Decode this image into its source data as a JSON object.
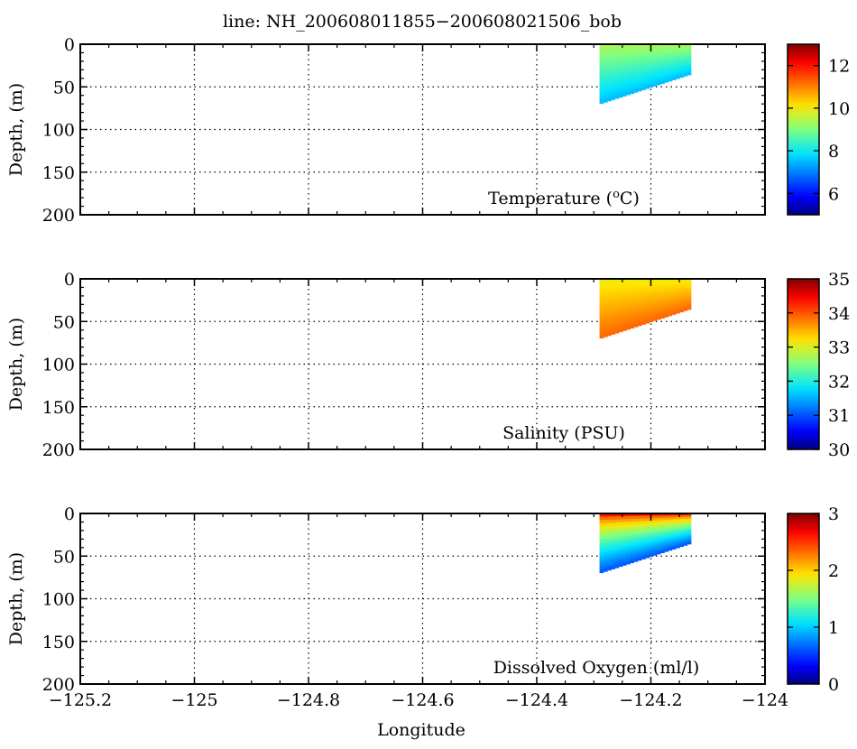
{
  "title": "line: NH_200608011855−200608021506_bob",
  "xlabel": "Longitude",
  "chart_data": [
    {
      "type": "heatmap",
      "label": "Temperature (°C)",
      "label_prefix": "Temperature (",
      "label_unit_sup": "o",
      "label_unit_rest": "C)",
      "ylabel": "Depth, (m)",
      "xlim": [
        -125.2,
        -124
      ],
      "ylim": [
        0,
        200
      ],
      "x_ticks": [
        "−125.2",
        "−125",
        "−124.8",
        "−124.6",
        "−124.4",
        "−124.2",
        "−124"
      ],
      "y_ticks": [
        "0",
        "50",
        "100",
        "150",
        "200"
      ],
      "colorbar": {
        "range": [
          5,
          13
        ],
        "ticks": [
          "6",
          "8",
          "10",
          "12"
        ]
      },
      "section": {
        "lon_range": [
          -124.29,
          -124.13
        ],
        "top_depth": 0,
        "bottom_depth_west": 70,
        "bottom_depth_east": 35,
        "surface_value": 9.4,
        "bottom_value": 7.5
      },
      "grid": true
    },
    {
      "type": "heatmap",
      "label": "Salinity (PSU)",
      "ylabel": "Depth, (m)",
      "xlim": [
        -125.2,
        -124
      ],
      "ylim": [
        0,
        200
      ],
      "x_ticks": [
        "−125.2",
        "−125",
        "−124.8",
        "−124.6",
        "−124.4",
        "−124.2",
        "−124"
      ],
      "y_ticks": [
        "0",
        "50",
        "100",
        "150",
        "200"
      ],
      "colorbar": {
        "range": [
          30,
          35
        ],
        "ticks": [
          "30",
          "31",
          "32",
          "33",
          "34",
          "35"
        ]
      },
      "section": {
        "lon_range": [
          -124.29,
          -124.13
        ],
        "top_depth": 0,
        "bottom_depth_west": 70,
        "bottom_depth_east": 35,
        "surface_value": 33.1,
        "bottom_value": 33.9
      },
      "grid": true
    },
    {
      "type": "heatmap",
      "label": "Dissolved Oxygen (ml/l)",
      "ylabel": "Depth, (m)",
      "xlim": [
        -125.2,
        -124
      ],
      "ylim": [
        0,
        200
      ],
      "x_ticks": [
        "−125.2",
        "−125",
        "−124.8",
        "−124.6",
        "−124.4",
        "−124.2",
        "−124"
      ],
      "y_ticks": [
        "0",
        "50",
        "100",
        "150",
        "200"
      ],
      "colorbar": {
        "range": [
          0,
          3
        ],
        "ticks": [
          "0",
          "1",
          "2",
          "3"
        ]
      },
      "section": {
        "lon_range": [
          -124.29,
          -124.13
        ],
        "top_depth": 0,
        "bottom_depth_west": 70,
        "bottom_depth_east": 35,
        "surface_value": 2.9,
        "bottom_value": 0.6
      },
      "grid": true
    }
  ]
}
